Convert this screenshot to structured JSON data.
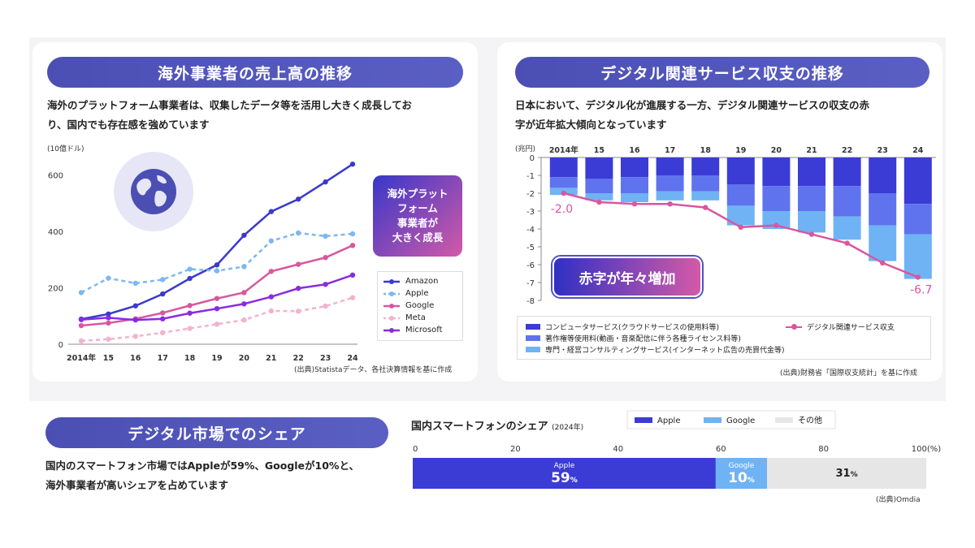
{
  "colors": {
    "title_bg": "#4b4fb3",
    "amazon": "#3a3acb",
    "apple": "#7db8f0",
    "google": "#d8579f",
    "meta": "#f3b3cd",
    "microsoft": "#8a2be2",
    "computer": "#3b3bd6",
    "copyright": "#5f73ee",
    "professional": "#6fb3f5",
    "balance_line": "#d8579f",
    "share_apple": "#3b3bd6",
    "share_google": "#6fb3f5",
    "share_other": "#e6e6e6"
  },
  "panel_left": {
    "title": "海外事業者の売上高の推移",
    "desc_line1": "海外のプラットフォーム事業者は、収集したデータ等を活用し大きく成長してお",
    "desc_line2": "り、国内でも存在感を強めています",
    "unit": "(10億ドル)",
    "callout": [
      "海外プラット",
      "フォーム",
      "事業者が",
      "大きく成長"
    ],
    "source": "(出典)Statistaデータ、各社決算情報を基に作成",
    "globe_icon": "globe-icon"
  },
  "panel_right": {
    "title": "デジタル関連サービス収支の推移",
    "desc_line1": "日本において、デジタル化が進展する一方、デジタル関連サービスの収支の赤",
    "desc_line2": "字が近年拡大傾向となっています",
    "unit": "(兆円)",
    "callout": "赤字が年々増加",
    "source": "(出典)財務省「国際収支統計」を基に作成"
  },
  "panel_bottom": {
    "title": "デジタル市場でのシェア",
    "desc_line1": "国内のスマートフォン市場ではAppleが59%、Googleが10%と、",
    "desc_line2": "海外事業者が高いシェアを占めています",
    "chart_title": "国内スマートフォンのシェア",
    "chart_year": "(2024年)",
    "source": "(出典)Omdia"
  },
  "chart_data": [
    {
      "type": "line",
      "title": "",
      "ylabel": "(10億ドル)",
      "ylim": [
        0,
        650
      ],
      "yticks": [
        0,
        200,
        400,
        600
      ],
      "x": [
        "2014年",
        "15",
        "16",
        "17",
        "18",
        "19",
        "20",
        "21",
        "22",
        "23",
        "24"
      ],
      "legend_placement": "bottom-right",
      "series": [
        {
          "name": "Amazon",
          "style": "solid",
          "values": [
            89,
            107,
            136,
            178,
            233,
            281,
            386,
            470,
            514,
            575,
            638
          ]
        },
        {
          "name": "Apple",
          "style": "dashed",
          "values": [
            183,
            234,
            216,
            229,
            266,
            260,
            275,
            366,
            394,
            383,
            391
          ]
        },
        {
          "name": "Google",
          "style": "solid",
          "values": [
            66,
            75,
            90,
            111,
            137,
            162,
            183,
            258,
            283,
            307,
            350
          ]
        },
        {
          "name": "Meta",
          "style": "dashed",
          "values": [
            12,
            18,
            28,
            41,
            56,
            71,
            86,
            118,
            117,
            135,
            165
          ]
        },
        {
          "name": "Microsoft",
          "style": "solid",
          "values": [
            87,
            94,
            86,
            90,
            110,
            126,
            143,
            168,
            198,
            212,
            245
          ]
        }
      ]
    },
    {
      "type": "bar",
      "stacked": true,
      "ylabel": "(兆円)",
      "ylim": [
        -8,
        0
      ],
      "yticks": [
        0,
        -1,
        -2,
        -3,
        -4,
        -5,
        -6,
        -7,
        -8
      ],
      "categories": [
        "2014年",
        "15",
        "16",
        "17",
        "18",
        "19",
        "20",
        "21",
        "22",
        "23",
        "24"
      ],
      "series": [
        {
          "name": "コンピュータサービス(クラウドサービスの使用料等)",
          "values": [
            -1.1,
            -1.2,
            -1.1,
            -1.0,
            -1.0,
            -1.5,
            -1.6,
            -1.6,
            -1.6,
            -2.0,
            -2.6
          ]
        },
        {
          "name": "著作権等使用料(動画・音楽配信に伴う各種ライセンス料等)",
          "values": [
            -0.6,
            -0.8,
            -0.9,
            -0.9,
            -0.9,
            -1.2,
            -1.4,
            -1.4,
            -1.7,
            -1.8,
            -1.7
          ]
        },
        {
          "name": "専門・経営コンサルティングサービス(インターネット広告の売買代金等)",
          "values": [
            -0.4,
            -0.4,
            -0.5,
            -0.5,
            -0.5,
            -1.1,
            -1.0,
            -1.2,
            -1.3,
            -2.0,
            -2.5
          ]
        }
      ],
      "line": {
        "name": "デジタル関連サービス収支",
        "values": [
          -2.0,
          -2.5,
          -2.6,
          -2.6,
          -2.8,
          -3.9,
          -3.8,
          -4.3,
          -4.8,
          -5.9,
          -6.7
        ]
      },
      "data_labels": {
        "first": "-2.0",
        "last": "-6.7"
      },
      "legend_placement": "bottom"
    },
    {
      "type": "bar",
      "orientation": "horizontal",
      "stacked": true,
      "title": "国内スマートフォンのシェア",
      "xlim": [
        0,
        100
      ],
      "xticks": [
        "0",
        "20",
        "40",
        "60",
        "80",
        "100(%)"
      ],
      "series": [
        {
          "name": "Apple",
          "value": 59,
          "label": "59",
          "unit": "%"
        },
        {
          "name": "Google",
          "value": 10,
          "label": "10",
          "unit": "%"
        },
        {
          "name": "その他",
          "value": 31,
          "label": "31",
          "unit": "%"
        }
      ],
      "legend_placement": "top"
    }
  ]
}
